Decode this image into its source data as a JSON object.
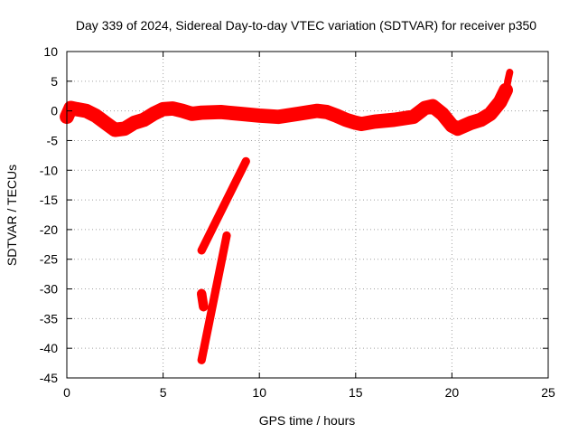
{
  "chart_data": {
    "type": "scatter",
    "title": "Day 339 of 2024, Sidereal Day-to-day VTEC variation (SDTVAR) for receiver p350",
    "xlabel": "GPS time / hours",
    "ylabel": "SDTVAR / TECUs",
    "xlim": [
      0,
      25
    ],
    "ylim": [
      -45,
      10
    ],
    "xticks": [
      0,
      5,
      10,
      15,
      20,
      25
    ],
    "yticks": [
      10,
      5,
      0,
      -5,
      -10,
      -15,
      -20,
      -25,
      -30,
      -35,
      -40,
      -45
    ],
    "grid": true,
    "legend": "none",
    "marker_color": "#ff0000",
    "series": [
      {
        "name": "main-band",
        "band": 2.4,
        "x": [
          0,
          0.2,
          0.5,
          1,
          1.5,
          2,
          2.5,
          3,
          3.5,
          4,
          4.5,
          5,
          5.5,
          6,
          6.5,
          7,
          8,
          9,
          10,
          11,
          12,
          13,
          13.5,
          14,
          14.5,
          15,
          15.3,
          16,
          17,
          18,
          18.6,
          19,
          19.5,
          20,
          20.3,
          21,
          21.5,
          22,
          22.5,
          22.8
        ],
        "y": [
          -1,
          0.5,
          0.3,
          0,
          -0.8,
          -2,
          -3.2,
          -3,
          -2,
          -1.5,
          -0.5,
          0.3,
          0.4,
          0,
          -0.5,
          -0.3,
          -0.2,
          -0.5,
          -0.8,
          -1,
          -0.5,
          0,
          -0.2,
          -0.8,
          -1.5,
          -2,
          -2.2,
          -1.8,
          -1.5,
          -1,
          0.5,
          0.8,
          -0.5,
          -2.5,
          -3,
          -2,
          -1.5,
          -0.5,
          1.5,
          3.5
        ]
      },
      {
        "name": "lower-track-1",
        "band": 1.4,
        "x": [
          7,
          9.3
        ],
        "y": [
          -23.5,
          -8.5
        ]
      },
      {
        "name": "lower-track-2",
        "band": 1.4,
        "x": [
          7,
          8.3
        ],
        "y": [
          -42,
          -21
        ]
      },
      {
        "name": "cluster-1",
        "band": 1.6,
        "x": [
          7,
          7.1
        ],
        "y": [
          -30.8,
          -33
        ]
      },
      {
        "name": "spike-end",
        "band": 1.2,
        "x": [
          22.8,
          22.9,
          23
        ],
        "y": [
          2.5,
          5,
          6.5
        ]
      }
    ]
  }
}
